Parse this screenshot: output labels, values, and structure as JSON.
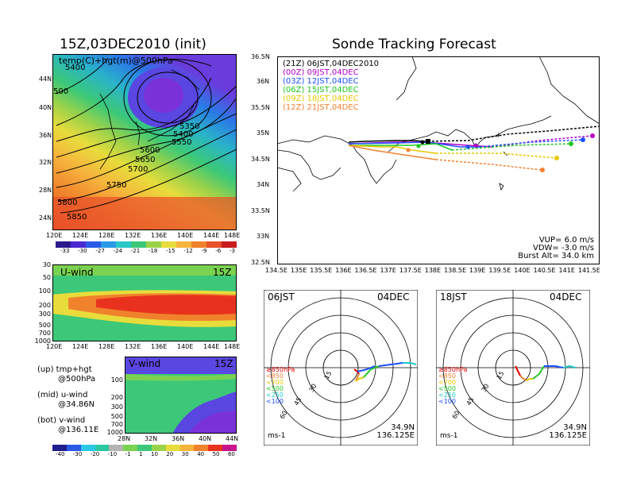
{
  "left": {
    "title": "15Z,03DEC2010 (init)",
    "map_label": "temp(C)+hgt(m)@500hPa",
    "lat_ticks": [
      "44N",
      "40N",
      "36N",
      "32N",
      "28N",
      "24N"
    ],
    "lon_ticks": [
      "120E",
      "124E",
      "128E",
      "132E",
      "136E",
      "140E",
      "144E",
      "148E"
    ],
    "contour_labels": [
      "5400",
      "500",
      "5350",
      "5400",
      "5550",
      "5600",
      "5650",
      "5700",
      "5750",
      "5800",
      "5850"
    ],
    "temp_colorbar": [
      "-33",
      "-30",
      "-27",
      "-24",
      "-21",
      "-18",
      "-15",
      "-12",
      "-9",
      "-6",
      "-3"
    ],
    "u_panel": {
      "label": "U-wind",
      "time": "15Z",
      "p_ticks": [
        "30",
        "50",
        "100",
        "200",
        "300",
        "500",
        "700",
        "1000"
      ]
    },
    "v_panel": {
      "label": "V-wind",
      "time": "15Z",
      "p_ticks": [
        "100",
        "200",
        "300",
        "500",
        "700",
        "1000"
      ],
      "lat_ticks": [
        "28N",
        "32N",
        "36N",
        "40N",
        "44N"
      ]
    },
    "notes": [
      {
        "a": "(up)  tmp+hgt",
        "b": "@500hPa"
      },
      {
        "a": "(mid)  u-wind",
        "b": "@34.86N"
      },
      {
        "a": "(bot)  v-wind",
        "b": "@136.11E"
      }
    ],
    "wind_colorbar": [
      "-40",
      "-30",
      "-20",
      "-10",
      "-1",
      "1",
      "10",
      "20",
      "30",
      "40",
      "50",
      "60"
    ]
  },
  "right": {
    "title": "Sonde Tracking Forecast",
    "lat_ticks": [
      "36.5N",
      "36N",
      "35.5N",
      "35N",
      "34.5N",
      "34N",
      "33.5N",
      "33N",
      "32.5N"
    ],
    "lon_ticks": [
      "134.5E",
      "135E",
      "135.5E",
      "136E",
      "136.5E",
      "137E",
      "137.5E",
      "138E",
      "138.5E",
      "139E",
      "139.5E",
      "140E",
      "140.5E",
      "141E",
      "141.5E"
    ],
    "legend": [
      {
        "label": "(21Z) 06JST,04DEC2010",
        "color": "#000000"
      },
      {
        "label": "(00Z) 09JST,04DEC",
        "color": "#b400c8"
      },
      {
        "label": "(03Z) 12JST,04DEC",
        "color": "#1e50ff"
      },
      {
        "label": "(06Z) 15JST,04DEC",
        "color": "#1ec81e"
      },
      {
        "label": "(09Z) 18JST,04DEC",
        "color": "#e6c800"
      },
      {
        "label": "(12Z) 21JST,04DEC",
        "color": "#f08232"
      }
    ],
    "params": {
      "vup": "VUP=  6.0  m/s",
      "vdw": "VDW= -3.0  m/s",
      "burst": "Burst Alt=  34.0  km"
    }
  },
  "hodographs": [
    {
      "time": "06JST",
      "date": "04DEC",
      "rings": [
        "15",
        "30",
        "45",
        "60"
      ],
      "unit": "ms-1",
      "lat": "34.9N",
      "lon": "136.125E",
      "levels": [
        {
          "label": "≥850hPa",
          "color": "#e60000"
        },
        {
          "label": "<850",
          "color": "#f08232"
        },
        {
          "label": "<700",
          "color": "#e6c800"
        },
        {
          "label": "<500",
          "color": "#1ec81e"
        },
        {
          "label": "<250",
          "color": "#1ec8c8"
        },
        {
          "label": "<100",
          "color": "#1e50ff"
        }
      ]
    },
    {
      "time": "18JST",
      "date": "04DEC",
      "rings": [
        "15",
        "30",
        "45",
        "60"
      ],
      "unit": "ms-1",
      "lat": "34.9N",
      "lon": "136.125E",
      "levels": [
        {
          "label": "≥850hPa",
          "color": "#e60000"
        },
        {
          "label": "<850",
          "color": "#f08232"
        },
        {
          "label": "<700",
          "color": "#e6c800"
        },
        {
          "label": "<500",
          "color": "#1ec81e"
        },
        {
          "label": "<250",
          "color": "#1ec8c8"
        },
        {
          "label": "<100",
          "color": "#1e50ff"
        }
      ]
    }
  ]
}
